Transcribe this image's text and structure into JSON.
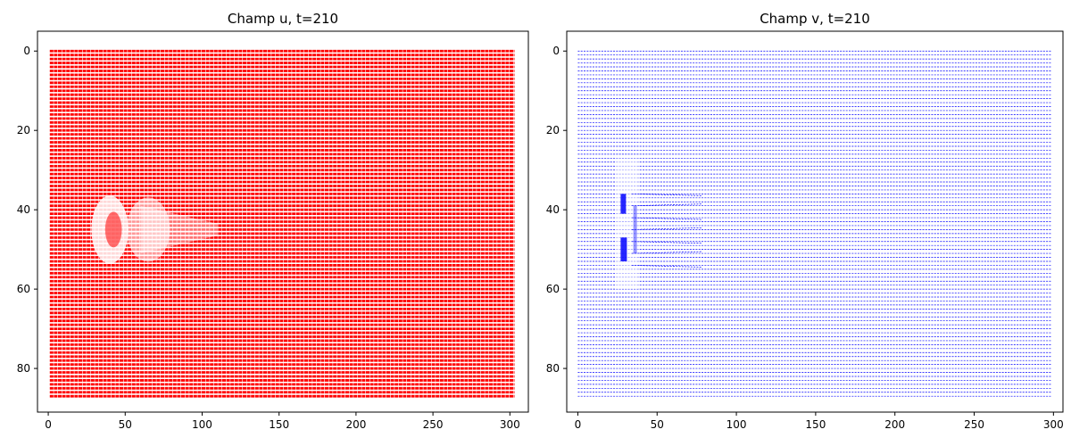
{
  "chart_data": [
    {
      "type": "quiver",
      "title": "Champ u, t=210",
      "xlabel": "",
      "ylabel": "",
      "color": "#ff0000",
      "xlim": [
        -7,
        312
      ],
      "ylim": [
        91,
        -5
      ],
      "y_inverted": true,
      "xticks": [
        0,
        50,
        100,
        150,
        200,
        250,
        300
      ],
      "yticks": [
        0,
        20,
        40,
        60,
        80
      ],
      "grid": false,
      "grid_x_range": [
        1,
        303
      ],
      "grid_y_range": [
        0,
        87
      ],
      "wake": {
        "center_x": 40,
        "center_y": 45,
        "extent_x_to": 110,
        "half_height": 9
      }
    },
    {
      "type": "quiver",
      "title": "Champ v, t=210",
      "xlabel": "",
      "ylabel": "",
      "color": "#0000ff",
      "xlim": [
        -7,
        306
      ],
      "ylim": [
        91,
        -5
      ],
      "y_inverted": true,
      "xticks": [
        0,
        50,
        100,
        150,
        200,
        250,
        300
      ],
      "yticks": [
        0,
        20,
        40,
        60,
        80
      ],
      "grid": false,
      "grid_x_range": [
        0,
        299
      ],
      "grid_y_range": [
        0,
        87
      ],
      "wake": {
        "center_x": 28,
        "center_y": 45,
        "extent_x_to": 78,
        "half_height": 10
      }
    }
  ]
}
